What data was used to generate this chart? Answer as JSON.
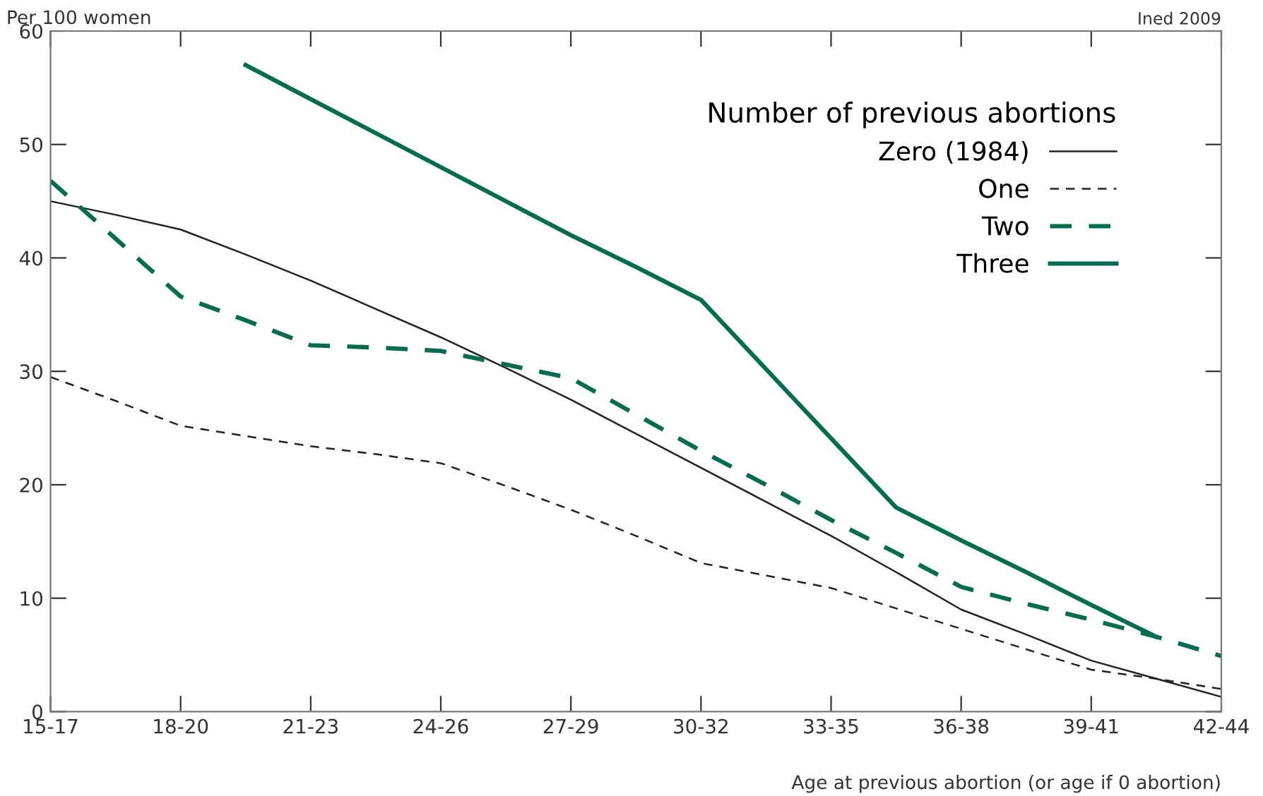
{
  "chart_data": {
    "type": "line",
    "ylabel": "Per 100 women",
    "xlabel": "Age at previous abortion (or age if 0 abortion)",
    "legend_title": "Number of previous abortions",
    "legend": "top right",
    "annotations": [
      "Ined 2009"
    ],
    "categories": [
      "15-17",
      null,
      "18-20",
      null,
      "21-23",
      null,
      "24-26",
      null,
      "27-29",
      null,
      "30-32",
      null,
      "33-35",
      null,
      "36-38",
      null,
      "39-41",
      null,
      "42-44"
    ],
    "ylim": [
      0,
      60
    ],
    "yticks": [
      0,
      10,
      20,
      30,
      40,
      50,
      60
    ],
    "grid": false,
    "series": [
      {
        "name": "Zero (1984)",
        "color": "#222222",
        "line_style": "solid",
        "values": [
          45,
          43.8,
          42.5,
          40.3,
          38,
          35.5,
          33,
          30.3,
          27.5,
          24.5,
          21.5,
          18.5,
          15.5,
          12.3,
          9,
          6.8,
          4.5,
          2.9,
          1.3
        ]
      },
      {
        "name": "One",
        "color": "#222222",
        "line_style": "dashed",
        "values": [
          29.5,
          27.4,
          25.2,
          24.3,
          23.4,
          22.7,
          21.9,
          19.9,
          17.8,
          15.5,
          13.1,
          12,
          10.9,
          9.1,
          7.3,
          5.5,
          3.7,
          2.9,
          2.0
        ]
      },
      {
        "name": "Two",
        "color": "#006e4e",
        "line_style": "dashed",
        "values": [
          46.8,
          41.7,
          36.6,
          34.5,
          32.3,
          32.1,
          31.8,
          30.6,
          29.4,
          26.2,
          23,
          20,
          16.9,
          14,
          11,
          9.5,
          8.1,
          6.6,
          4.9
        ]
      },
      {
        "name": "Three",
        "color": "#006e4e",
        "line_style": "solid",
        "values": [
          null,
          null,
          null,
          57,
          54,
          51,
          48,
          45,
          42,
          39.2,
          36.3,
          30.2,
          24.1,
          18,
          15.1,
          12.3,
          9.4,
          6.6,
          null
        ]
      }
    ]
  }
}
